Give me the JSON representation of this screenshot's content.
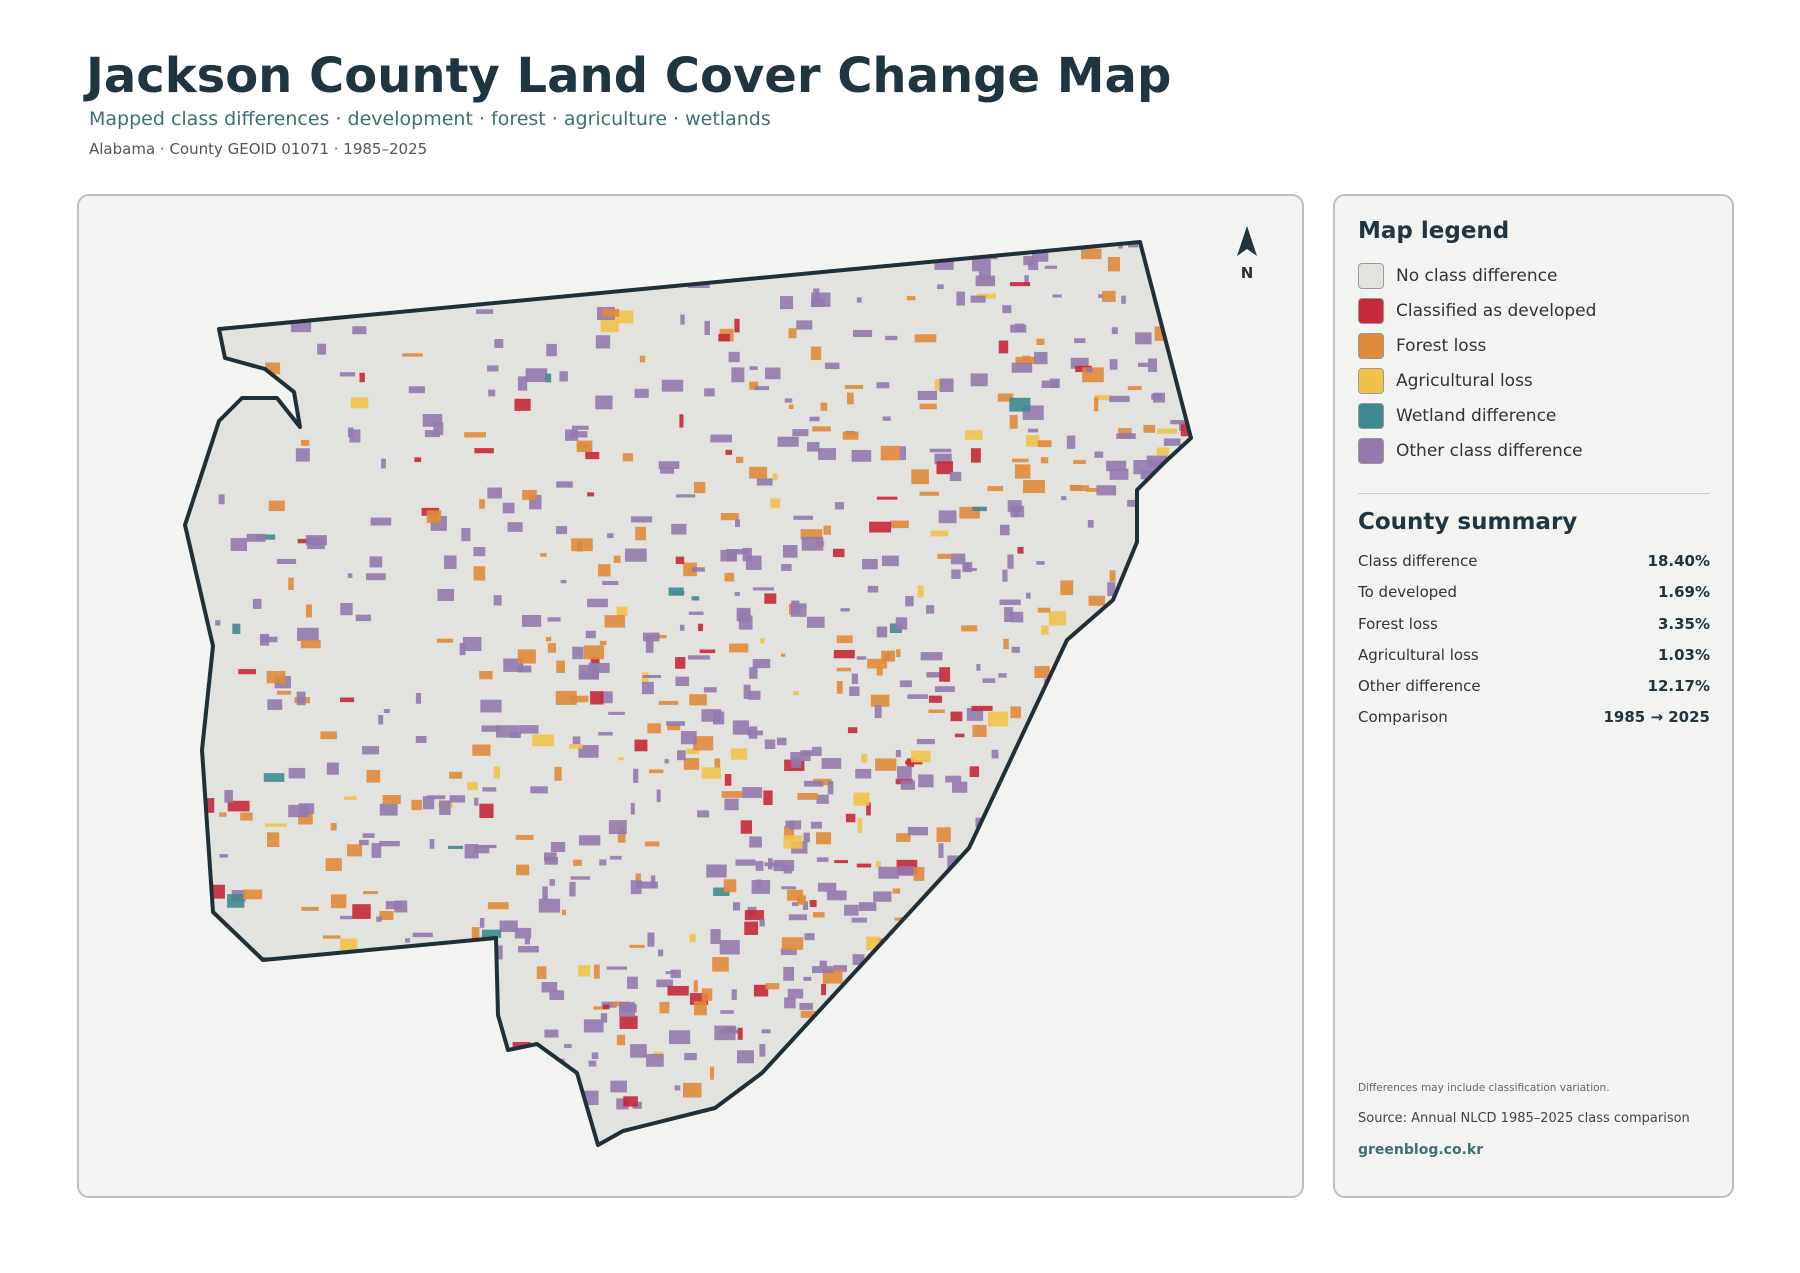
{
  "header": {
    "title": "Jackson County Land Cover Change Map",
    "subtitle": "Mapped class differences · development · forest · agriculture · wetlands",
    "meta": "Alabama · County GEOID 01071 · 1985–2025"
  },
  "map": {
    "north_label": "N"
  },
  "legend": {
    "title": "Map legend",
    "items": [
      {
        "label": "No class difference",
        "color": "#e2e3df"
      },
      {
        "label": "Classified as developed",
        "color": "#c8283a"
      },
      {
        "label": "Forest loss",
        "color": "#e08a3a"
      },
      {
        "label": "Agricultural loss",
        "color": "#f0c24a"
      },
      {
        "label": "Wetland difference",
        "color": "#3f8a90"
      },
      {
        "label": "Other class difference",
        "color": "#9479ad"
      }
    ]
  },
  "summary": {
    "title": "County summary",
    "rows": [
      [
        "Class difference",
        "18.40%"
      ],
      [
        "To developed",
        "1.69%"
      ],
      [
        "Forest loss",
        "3.35%"
      ],
      [
        "Agricultural loss",
        "1.03%"
      ],
      [
        "Other difference",
        "12.17%"
      ],
      [
        "Comparison",
        "1985 → 2025"
      ]
    ]
  },
  "footer": {
    "note": "Differences may include classification variation.",
    "source": "Source: Annual NLCD 1985–2025 class comparison",
    "credit": "greenblog.co.kr"
  }
}
